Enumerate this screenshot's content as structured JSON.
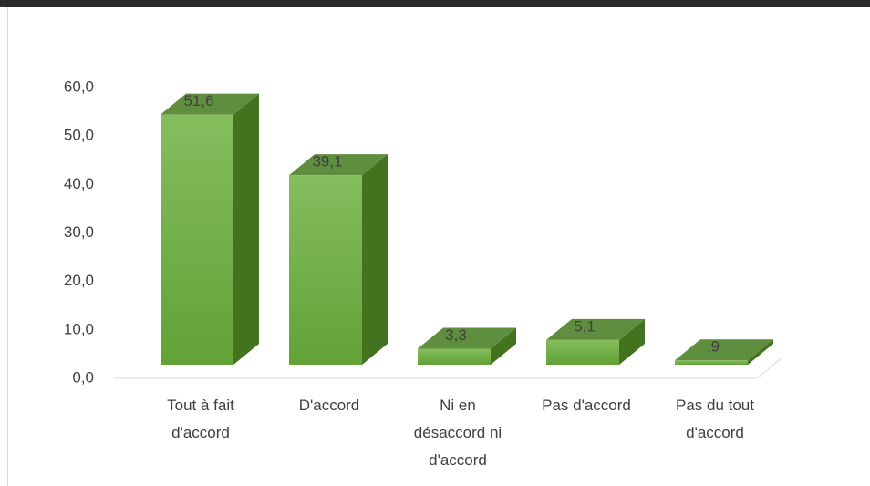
{
  "chart_data": {
    "type": "bar3d",
    "categories": [
      "Tout à fait d'accord",
      "D'accord",
      "Ni en désaccord ni d'accord",
      "Pas d'accord",
      "Pas du tout d'accord"
    ],
    "values": [
      51.6,
      39.1,
      3.3,
      5.1,
      0.9
    ],
    "value_labels": [
      "51,6",
      "39,1",
      "3,3",
      "5,1",
      ",9"
    ],
    "color": "#70ad47",
    "ylim": [
      0,
      60
    ],
    "yticks": [
      {
        "value": 0,
        "label": "0,0"
      },
      {
        "value": 10,
        "label": "10,0"
      },
      {
        "value": 20,
        "label": "20,0"
      },
      {
        "value": 30,
        "label": "30,0"
      },
      {
        "value": 40,
        "label": "40,0"
      },
      {
        "value": 50,
        "label": "50,0"
      },
      {
        "value": 60,
        "label": "60,0"
      }
    ]
  }
}
